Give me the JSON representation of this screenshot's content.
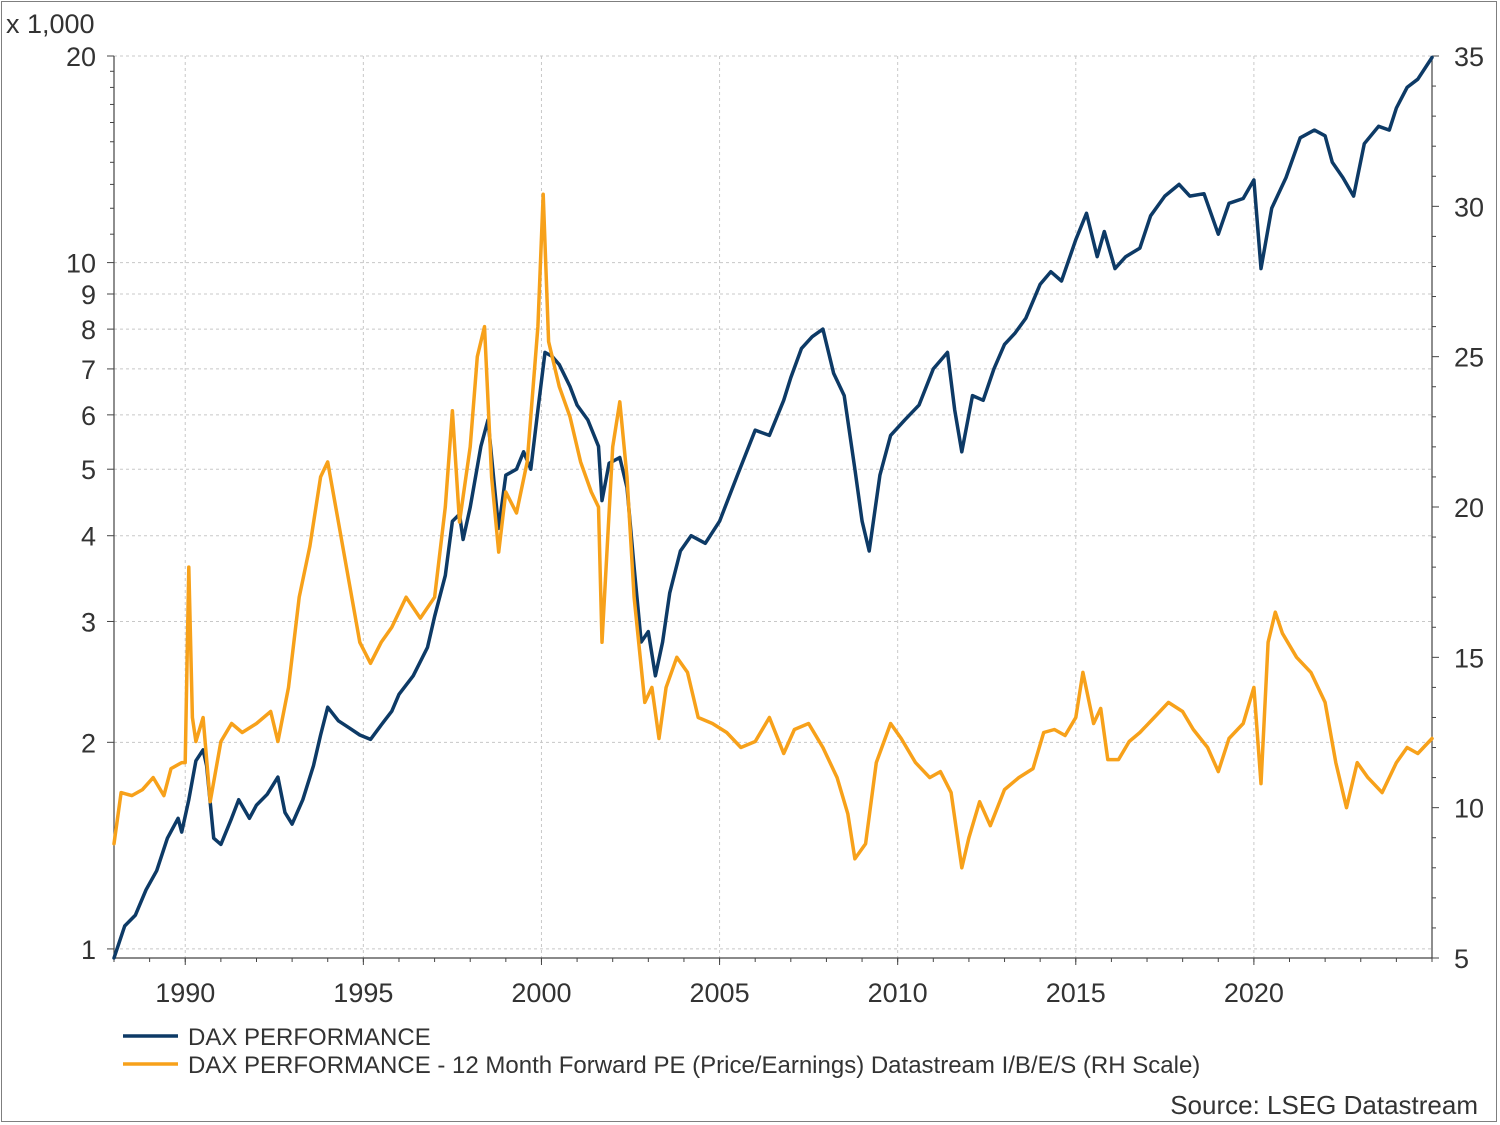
{
  "chart_data": {
    "type": "line",
    "title": "",
    "left_axis": {
      "unit_label": "x 1,000",
      "scale": "log",
      "range": [
        0.97,
        20
      ],
      "ticks": [
        1,
        2,
        3,
        4,
        5,
        6,
        7,
        8,
        9,
        10,
        20
      ],
      "tick_labels": [
        "1",
        "2",
        "3",
        "4",
        "5",
        "6",
        "7",
        "8",
        "9",
        "10",
        "20"
      ]
    },
    "right_axis": {
      "scale": "linear",
      "range": [
        5,
        35
      ],
      "ticks": [
        5,
        10,
        15,
        20,
        25,
        30,
        35
      ],
      "tick_labels": [
        "5",
        "10",
        "15",
        "20",
        "25",
        "30",
        "35"
      ]
    },
    "x_axis": {
      "range": [
        1988.0,
        2025.0
      ],
      "ticks": [
        1990,
        1995,
        2000,
        2005,
        2010,
        2015,
        2020
      ],
      "tick_labels": [
        "1990",
        "1995",
        "2000",
        "2005",
        "2010",
        "2015",
        "2020"
      ]
    },
    "grid": true,
    "legend_position": "bottom-left",
    "series": [
      {
        "name": "DAX PERFORMANCE",
        "axis": "left",
        "color": "#0d3a66",
        "points": [
          [
            1988.0,
            0.97
          ],
          [
            1988.3,
            1.08
          ],
          [
            1988.6,
            1.12
          ],
          [
            1988.9,
            1.22
          ],
          [
            1989.2,
            1.3
          ],
          [
            1989.5,
            1.45
          ],
          [
            1989.8,
            1.55
          ],
          [
            1989.9,
            1.48
          ],
          [
            1990.1,
            1.65
          ],
          [
            1990.3,
            1.88
          ],
          [
            1990.5,
            1.95
          ],
          [
            1990.6,
            1.85
          ],
          [
            1990.8,
            1.45
          ],
          [
            1991.0,
            1.42
          ],
          [
            1991.3,
            1.55
          ],
          [
            1991.5,
            1.65
          ],
          [
            1991.8,
            1.55
          ],
          [
            1992.0,
            1.62
          ],
          [
            1992.3,
            1.68
          ],
          [
            1992.6,
            1.78
          ],
          [
            1992.8,
            1.58
          ],
          [
            1993.0,
            1.52
          ],
          [
            1993.3,
            1.65
          ],
          [
            1993.6,
            1.85
          ],
          [
            1993.8,
            2.05
          ],
          [
            1994.0,
            2.25
          ],
          [
            1994.3,
            2.15
          ],
          [
            1994.6,
            2.1
          ],
          [
            1994.9,
            2.05
          ],
          [
            1995.2,
            2.02
          ],
          [
            1995.5,
            2.12
          ],
          [
            1995.8,
            2.22
          ],
          [
            1996.0,
            2.35
          ],
          [
            1996.4,
            2.5
          ],
          [
            1996.8,
            2.75
          ],
          [
            1997.0,
            3.05
          ],
          [
            1997.3,
            3.5
          ],
          [
            1997.5,
            4.2
          ],
          [
            1997.7,
            4.3
          ],
          [
            1997.8,
            3.95
          ],
          [
            1998.0,
            4.4
          ],
          [
            1998.3,
            5.4
          ],
          [
            1998.5,
            5.9
          ],
          [
            1998.7,
            4.6
          ],
          [
            1998.8,
            4.1
          ],
          [
            1999.0,
            4.9
          ],
          [
            1999.3,
            5.0
          ],
          [
            1999.5,
            5.3
          ],
          [
            1999.7,
            5.0
          ],
          [
            1999.9,
            6.1
          ],
          [
            2000.1,
            7.4
          ],
          [
            2000.3,
            7.3
          ],
          [
            2000.5,
            7.1
          ],
          [
            2000.8,
            6.6
          ],
          [
            2001.0,
            6.2
          ],
          [
            2001.3,
            5.9
          ],
          [
            2001.6,
            5.4
          ],
          [
            2001.7,
            4.5
          ],
          [
            2001.9,
            5.1
          ],
          [
            2002.2,
            5.2
          ],
          [
            2002.4,
            4.7
          ],
          [
            2002.6,
            3.6
          ],
          [
            2002.8,
            2.8
          ],
          [
            2003.0,
            2.9
          ],
          [
            2003.2,
            2.5
          ],
          [
            2003.4,
            2.8
          ],
          [
            2003.6,
            3.3
          ],
          [
            2003.9,
            3.8
          ],
          [
            2004.2,
            4.0
          ],
          [
            2004.6,
            3.9
          ],
          [
            2005.0,
            4.2
          ],
          [
            2005.5,
            4.9
          ],
          [
            2006.0,
            5.7
          ],
          [
            2006.4,
            5.6
          ],
          [
            2006.8,
            6.3
          ],
          [
            2007.0,
            6.8
          ],
          [
            2007.3,
            7.5
          ],
          [
            2007.6,
            7.8
          ],
          [
            2007.9,
            8.0
          ],
          [
            2008.2,
            6.9
          ],
          [
            2008.5,
            6.4
          ],
          [
            2008.8,
            5.0
          ],
          [
            2009.0,
            4.2
          ],
          [
            2009.2,
            3.8
          ],
          [
            2009.5,
            4.9
          ],
          [
            2009.8,
            5.6
          ],
          [
            2010.2,
            5.9
          ],
          [
            2010.6,
            6.2
          ],
          [
            2011.0,
            7.0
          ],
          [
            2011.4,
            7.4
          ],
          [
            2011.6,
            6.1
          ],
          [
            2011.8,
            5.3
          ],
          [
            2012.1,
            6.4
          ],
          [
            2012.4,
            6.3
          ],
          [
            2012.7,
            7.0
          ],
          [
            2013.0,
            7.6
          ],
          [
            2013.3,
            7.9
          ],
          [
            2013.6,
            8.3
          ],
          [
            2014.0,
            9.3
          ],
          [
            2014.3,
            9.7
          ],
          [
            2014.6,
            9.4
          ],
          [
            2015.0,
            10.8
          ],
          [
            2015.3,
            11.8
          ],
          [
            2015.6,
            10.2
          ],
          [
            2015.8,
            11.1
          ],
          [
            2016.1,
            9.8
          ],
          [
            2016.4,
            10.2
          ],
          [
            2016.8,
            10.5
          ],
          [
            2017.1,
            11.7
          ],
          [
            2017.5,
            12.5
          ],
          [
            2017.9,
            13.0
          ],
          [
            2018.2,
            12.5
          ],
          [
            2018.6,
            12.6
          ],
          [
            2019.0,
            11.0
          ],
          [
            2019.3,
            12.2
          ],
          [
            2019.7,
            12.4
          ],
          [
            2020.0,
            13.2
          ],
          [
            2020.2,
            9.8
          ],
          [
            2020.5,
            12.0
          ],
          [
            2020.9,
            13.3
          ],
          [
            2021.3,
            15.2
          ],
          [
            2021.7,
            15.6
          ],
          [
            2022.0,
            15.3
          ],
          [
            2022.2,
            14.0
          ],
          [
            2022.5,
            13.3
          ],
          [
            2022.8,
            12.5
          ],
          [
            2023.1,
            14.9
          ],
          [
            2023.5,
            15.8
          ],
          [
            2023.8,
            15.6
          ],
          [
            2024.0,
            16.8
          ],
          [
            2024.3,
            18.0
          ],
          [
            2024.6,
            18.5
          ],
          [
            2025.0,
            19.9
          ]
        ]
      },
      {
        "name": "DAX PERFORMANCE - 12 Month Forward PE (Price/Earnings) Datastream I/B/E/S (RH Scale)",
        "axis": "right",
        "color": "#f7a11a",
        "points": [
          [
            1988.0,
            8.8
          ],
          [
            1988.2,
            10.5
          ],
          [
            1988.5,
            10.4
          ],
          [
            1988.8,
            10.6
          ],
          [
            1989.1,
            11.0
          ],
          [
            1989.4,
            10.4
          ],
          [
            1989.6,
            11.3
          ],
          [
            1989.9,
            11.5
          ],
          [
            1990.0,
            11.5
          ],
          [
            1990.1,
            18.0
          ],
          [
            1990.2,
            13.0
          ],
          [
            1990.3,
            12.2
          ],
          [
            1990.5,
            13.0
          ],
          [
            1990.7,
            10.2
          ],
          [
            1991.0,
            12.2
          ],
          [
            1991.3,
            12.8
          ],
          [
            1991.6,
            12.5
          ],
          [
            1992.0,
            12.8
          ],
          [
            1992.4,
            13.2
          ],
          [
            1992.6,
            12.2
          ],
          [
            1992.9,
            14.0
          ],
          [
            1993.2,
            17.0
          ],
          [
            1993.5,
            18.7
          ],
          [
            1993.8,
            21.0
          ],
          [
            1994.0,
            21.5
          ],
          [
            1994.3,
            19.5
          ],
          [
            1994.6,
            17.5
          ],
          [
            1994.9,
            15.5
          ],
          [
            1995.2,
            14.8
          ],
          [
            1995.5,
            15.5
          ],
          [
            1995.8,
            16.0
          ],
          [
            1996.2,
            17.0
          ],
          [
            1996.6,
            16.3
          ],
          [
            1997.0,
            17.0
          ],
          [
            1997.3,
            20.0
          ],
          [
            1997.5,
            23.2
          ],
          [
            1997.7,
            19.5
          ],
          [
            1998.0,
            22.0
          ],
          [
            1998.2,
            25.0
          ],
          [
            1998.4,
            26.0
          ],
          [
            1998.6,
            21.0
          ],
          [
            1998.8,
            18.5
          ],
          [
            1999.0,
            20.5
          ],
          [
            1999.3,
            19.8
          ],
          [
            1999.6,
            21.5
          ],
          [
            1999.9,
            26.0
          ],
          [
            2000.05,
            30.4
          ],
          [
            2000.2,
            25.5
          ],
          [
            2000.5,
            24.0
          ],
          [
            2000.8,
            23.0
          ],
          [
            2001.1,
            21.5
          ],
          [
            2001.4,
            20.5
          ],
          [
            2001.6,
            20.0
          ],
          [
            2001.7,
            15.5
          ],
          [
            2002.0,
            22.0
          ],
          [
            2002.2,
            23.5
          ],
          [
            2002.4,
            21.0
          ],
          [
            2002.6,
            17.0
          ],
          [
            2002.9,
            13.5
          ],
          [
            2003.1,
            14.0
          ],
          [
            2003.3,
            12.3
          ],
          [
            2003.5,
            14.0
          ],
          [
            2003.8,
            15.0
          ],
          [
            2004.1,
            14.5
          ],
          [
            2004.4,
            13.0
          ],
          [
            2004.8,
            12.8
          ],
          [
            2005.2,
            12.5
          ],
          [
            2005.6,
            12.0
          ],
          [
            2006.0,
            12.2
          ],
          [
            2006.4,
            13.0
          ],
          [
            2006.8,
            11.8
          ],
          [
            2007.1,
            12.6
          ],
          [
            2007.5,
            12.8
          ],
          [
            2007.9,
            12.0
          ],
          [
            2008.3,
            11.0
          ],
          [
            2008.6,
            9.8
          ],
          [
            2008.8,
            8.3
          ],
          [
            2009.1,
            8.8
          ],
          [
            2009.4,
            11.5
          ],
          [
            2009.8,
            12.8
          ],
          [
            2010.1,
            12.3
          ],
          [
            2010.5,
            11.5
          ],
          [
            2010.9,
            11.0
          ],
          [
            2011.2,
            11.2
          ],
          [
            2011.5,
            10.5
          ],
          [
            2011.8,
            8.0
          ],
          [
            2012.0,
            9.0
          ],
          [
            2012.3,
            10.2
          ],
          [
            2012.6,
            9.4
          ],
          [
            2013.0,
            10.6
          ],
          [
            2013.4,
            11.0
          ],
          [
            2013.8,
            11.3
          ],
          [
            2014.1,
            12.5
          ],
          [
            2014.4,
            12.6
          ],
          [
            2014.7,
            12.4
          ],
          [
            2015.0,
            13.0
          ],
          [
            2015.2,
            14.5
          ],
          [
            2015.5,
            12.8
          ],
          [
            2015.7,
            13.3
          ],
          [
            2015.9,
            11.6
          ],
          [
            2016.2,
            11.6
          ],
          [
            2016.5,
            12.2
          ],
          [
            2016.8,
            12.5
          ],
          [
            2017.2,
            13.0
          ],
          [
            2017.6,
            13.5
          ],
          [
            2018.0,
            13.2
          ],
          [
            2018.3,
            12.6
          ],
          [
            2018.7,
            12.0
          ],
          [
            2019.0,
            11.2
          ],
          [
            2019.3,
            12.3
          ],
          [
            2019.7,
            12.8
          ],
          [
            2020.0,
            14.0
          ],
          [
            2020.2,
            10.8
          ],
          [
            2020.4,
            15.5
          ],
          [
            2020.6,
            16.5
          ],
          [
            2020.8,
            15.8
          ],
          [
            2021.2,
            15.0
          ],
          [
            2021.6,
            14.5
          ],
          [
            2022.0,
            13.5
          ],
          [
            2022.3,
            11.5
          ],
          [
            2022.6,
            10.0
          ],
          [
            2022.9,
            11.5
          ],
          [
            2023.2,
            11.0
          ],
          [
            2023.6,
            10.5
          ],
          [
            2024.0,
            11.5
          ],
          [
            2024.3,
            12.0
          ],
          [
            2024.6,
            11.8
          ],
          [
            2025.0,
            12.3
          ]
        ]
      }
    ],
    "legend": [
      {
        "label": "DAX PERFORMANCE",
        "color": "#0d3a66"
      },
      {
        "label": "DAX PERFORMANCE - 12 Month Forward PE (Price/Earnings) Datastream I/B/E/S (RH Scale)",
        "color": "#f7a11a"
      }
    ],
    "source": "Source: LSEG Datastream"
  }
}
